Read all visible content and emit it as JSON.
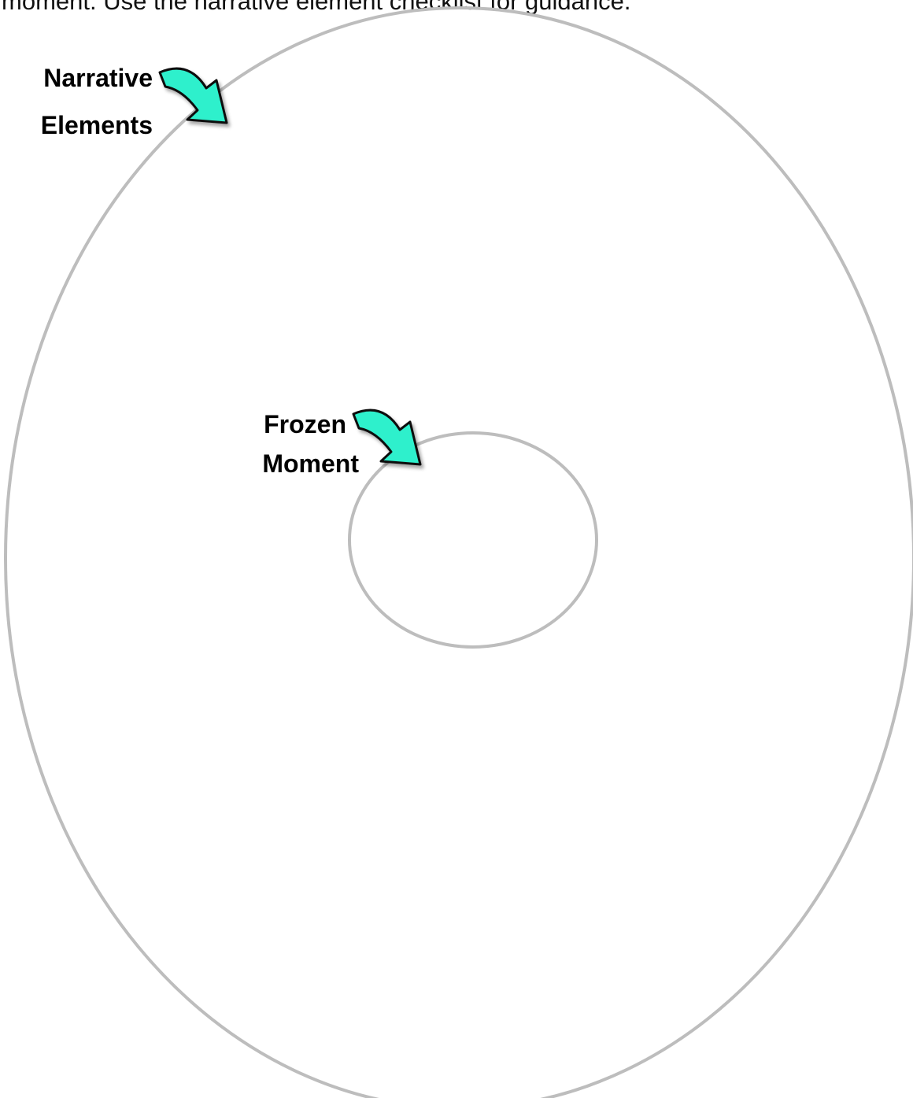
{
  "instruction": "moment. Use the narrative element checklist for guidance.",
  "outer_label": {
    "lines": [
      "Narrative",
      "Elements"
    ]
  },
  "inner_label": {
    "lines": [
      "Frozen",
      "Moment"
    ]
  }
}
